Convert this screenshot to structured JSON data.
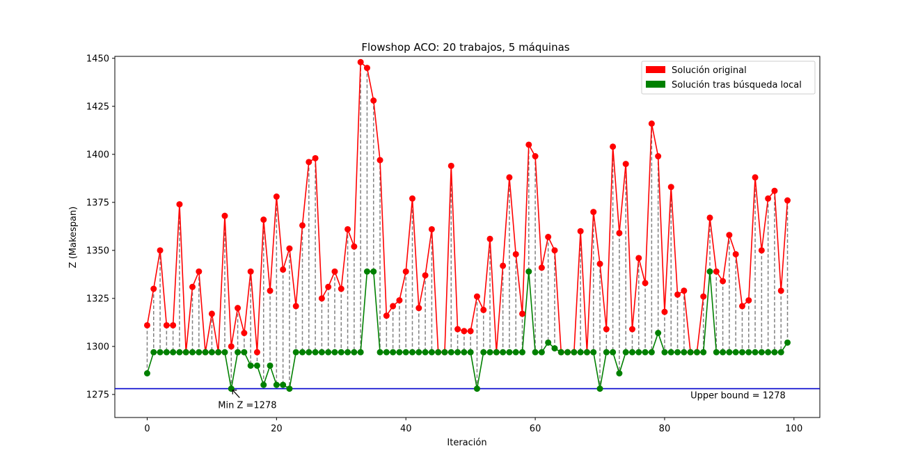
{
  "chart_data": {
    "type": "line",
    "title": "Flowshop ACO: 20 trabajos, 5 máquinas",
    "xlabel": "Iteración",
    "ylabel": "Z (Makespan)",
    "xlim": [
      -5,
      104
    ],
    "ylim": [
      1263,
      1451
    ],
    "xticks": [
      0,
      20,
      40,
      60,
      80,
      100
    ],
    "yticks": [
      1275,
      1300,
      1325,
      1350,
      1375,
      1400,
      1425,
      1450
    ],
    "legend_position": "top-right",
    "series": [
      {
        "name": "Solución original",
        "color": "#ff0000",
        "x": [
          0,
          1,
          2,
          3,
          4,
          5,
          6,
          7,
          8,
          9,
          10,
          11,
          12,
          13,
          14,
          15,
          16,
          17,
          18,
          19,
          20,
          21,
          22,
          23,
          24,
          25,
          26,
          27,
          28,
          29,
          30,
          31,
          32,
          33,
          34,
          35,
          36,
          37,
          38,
          39,
          40,
          41,
          42,
          43,
          44,
          45,
          46,
          47,
          48,
          49,
          50,
          51,
          52,
          53,
          54,
          55,
          56,
          57,
          58,
          59,
          60,
          61,
          62,
          63,
          64,
          65,
          66,
          67,
          68,
          69,
          70,
          71,
          72,
          73,
          74,
          75,
          76,
          77,
          78,
          79,
          80,
          81,
          82,
          83,
          84,
          85,
          86,
          87,
          88,
          89,
          90,
          91,
          92,
          93,
          94,
          95,
          96,
          97,
          98,
          99
        ],
        "values": [
          1311,
          1330,
          1350,
          1311,
          1311,
          1374,
          1297,
          1331,
          1339,
          1297,
          1317,
          1297,
          1368,
          1300,
          1320,
          1307,
          1339,
          1297,
          1366,
          1329,
          1378,
          1340,
          1351,
          1321,
          1363,
          1396,
          1398,
          1325,
          1331,
          1339,
          1330,
          1361,
          1352,
          1448,
          1445,
          1428,
          1397,
          1316,
          1321,
          1324,
          1339,
          1377,
          1320,
          1337,
          1361,
          1297,
          1297,
          1394,
          1309,
          1308,
          1308,
          1326,
          1319,
          1356,
          1297,
          1342,
          1388,
          1348,
          1317,
          1405,
          1399,
          1341,
          1357,
          1350,
          1297,
          1297,
          1297,
          1360,
          1297,
          1370,
          1343,
          1309,
          1404,
          1359,
          1395,
          1309,
          1346,
          1333,
          1416,
          1399,
          1318,
          1383,
          1327,
          1329,
          1297,
          1297,
          1326,
          1367,
          1339,
          1334,
          1358,
          1348,
          1321,
          1324,
          1388,
          1350,
          1377,
          1381,
          1329,
          1376
        ]
      },
      {
        "name": "Solución tras búsqueda local",
        "color": "#008000",
        "x": [
          0,
          1,
          2,
          3,
          4,
          5,
          6,
          7,
          8,
          9,
          10,
          11,
          12,
          13,
          14,
          15,
          16,
          17,
          18,
          19,
          20,
          21,
          22,
          23,
          24,
          25,
          26,
          27,
          28,
          29,
          30,
          31,
          32,
          33,
          34,
          35,
          36,
          37,
          38,
          39,
          40,
          41,
          42,
          43,
          44,
          45,
          46,
          47,
          48,
          49,
          50,
          51,
          52,
          53,
          54,
          55,
          56,
          57,
          58,
          59,
          60,
          61,
          62,
          63,
          64,
          65,
          66,
          67,
          68,
          69,
          70,
          71,
          72,
          73,
          74,
          75,
          76,
          77,
          78,
          79,
          80,
          81,
          82,
          83,
          84,
          85,
          86,
          87,
          88,
          89,
          90,
          91,
          92,
          93,
          94,
          95,
          96,
          97,
          98,
          99
        ],
        "values": [
          1286,
          1297,
          1297,
          1297,
          1297,
          1297,
          1297,
          1297,
          1297,
          1297,
          1297,
          1297,
          1297,
          1278,
          1297,
          1297,
          1290,
          1290,
          1280,
          1290,
          1280,
          1280,
          1278,
          1297,
          1297,
          1297,
          1297,
          1297,
          1297,
          1297,
          1297,
          1297,
          1297,
          1297,
          1339,
          1339,
          1297,
          1297,
          1297,
          1297,
          1297,
          1297,
          1297,
          1297,
          1297,
          1297,
          1297,
          1297,
          1297,
          1297,
          1297,
          1278,
          1297,
          1297,
          1297,
          1297,
          1297,
          1297,
          1297,
          1339,
          1297,
          1297,
          1302,
          1299,
          1297,
          1297,
          1297,
          1297,
          1297,
          1297,
          1278,
          1297,
          1297,
          1286,
          1297,
          1297,
          1297,
          1297,
          1297,
          1307,
          1297,
          1297,
          1297,
          1297,
          1297,
          1297,
          1297,
          1339,
          1297,
          1297,
          1297,
          1297,
          1297,
          1297,
          1297,
          1297,
          1297,
          1297,
          1297,
          1302
        ]
      }
    ],
    "hline": {
      "y": 1278,
      "color": "#0000cc",
      "label": "Upper bound = 1278"
    },
    "annotation": {
      "text": "Min Z =1278",
      "x": 13,
      "y": 1278
    }
  }
}
